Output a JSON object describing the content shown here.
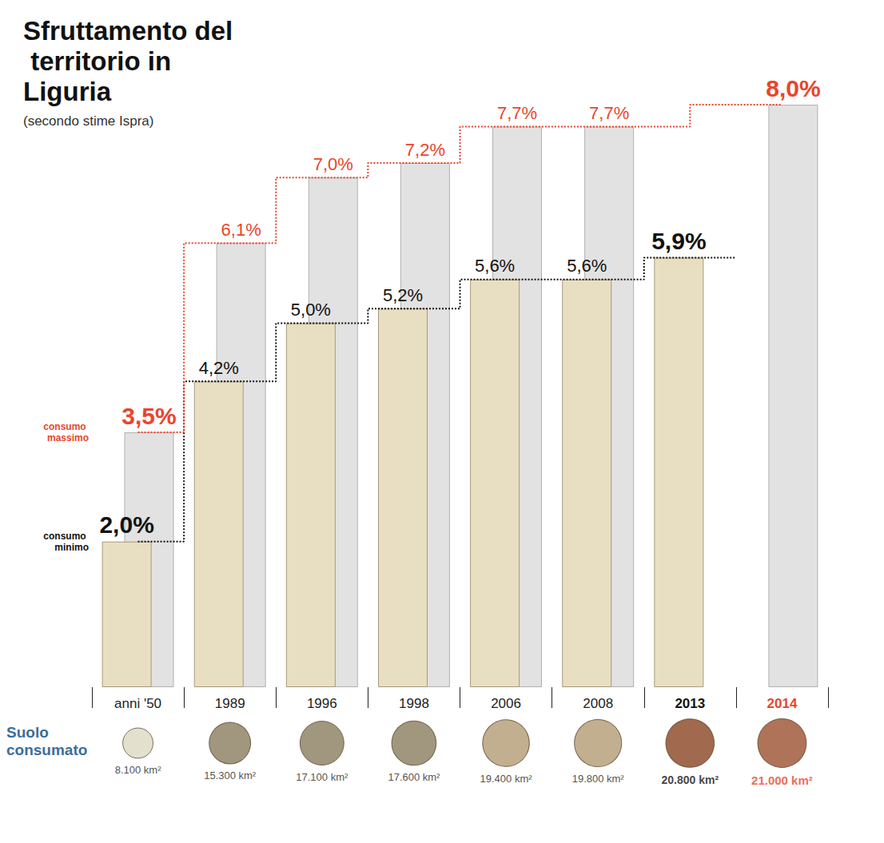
{
  "chart_data": {
    "type": "bar",
    "title": "Sfruttamento del territorio in Liguria",
    "subtitle": "(secondo stime Ispra)",
    "categories": [
      "anni '50",
      "1989",
      "1996",
      "1998",
      "2006",
      "2008",
      "2013",
      "2014"
    ],
    "series": [
      {
        "name": "consumo minimo",
        "color": "#111111",
        "values": [
          2.0,
          4.2,
          5.0,
          5.2,
          5.6,
          5.6,
          5.9,
          null
        ],
        "value_labels": [
          "2,0%",
          "4,2%",
          "5,0%",
          "5,2%",
          "5,6%",
          "5,6%",
          "5,9%",
          null
        ]
      },
      {
        "name": "consumo massimo",
        "color": "#e8452c",
        "values": [
          3.5,
          6.1,
          7.0,
          7.2,
          7.7,
          7.7,
          null,
          8.0
        ],
        "value_labels": [
          "3,5%",
          "6,1%",
          "7,0%",
          "7,2%",
          "7,7%",
          "7,7%",
          null,
          "8,0%"
        ]
      }
    ],
    "ylim": [
      0,
      9
    ],
    "tick_labels": "x",
    "data_labels": true,
    "grid": false,
    "suolo_consumato": {
      "title": "Suolo consumato",
      "values": [
        8100,
        15300,
        17100,
        17600,
        19400,
        19800,
        20800,
        21000
      ],
      "value_labels": [
        "8.100 km²",
        "15.300 km²",
        "17.100 km²",
        "17.600 km²",
        "19.400 km²",
        "19.800 km²",
        "20.800 km²",
        "21.000 km²"
      ],
      "colors": [
        "#dcd8c2",
        "#8a7c5e",
        "#8a7c5e",
        "#8a7c5e",
        "#b39b73",
        "#b39b73",
        "#8a4422",
        "#9b5030"
      ]
    }
  }
}
